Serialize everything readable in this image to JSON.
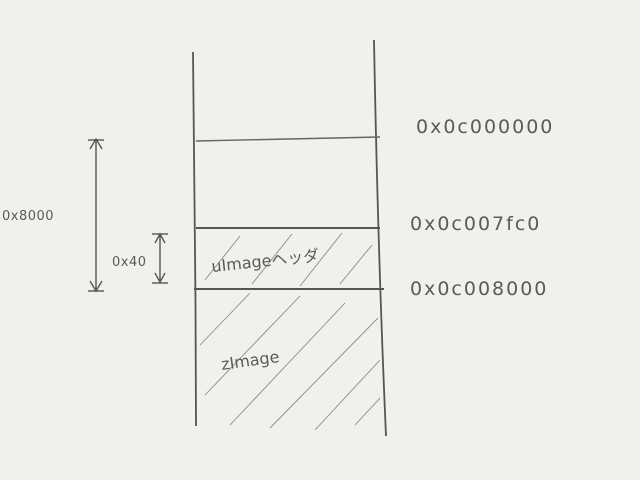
{
  "diagram": {
    "addresses": {
      "top": "0x0c000000",
      "header_start": "0x0c007fc0",
      "zimage_start": "0x0c008000"
    },
    "dimensions": {
      "offset": "0x8000",
      "header_size": "0x40"
    },
    "regions": {
      "uimage_header": "uImageヘッダ",
      "zimage": "zImage"
    },
    "colors": {
      "paper": "#f1f0ed",
      "pencil": "#5a5a5a"
    }
  }
}
